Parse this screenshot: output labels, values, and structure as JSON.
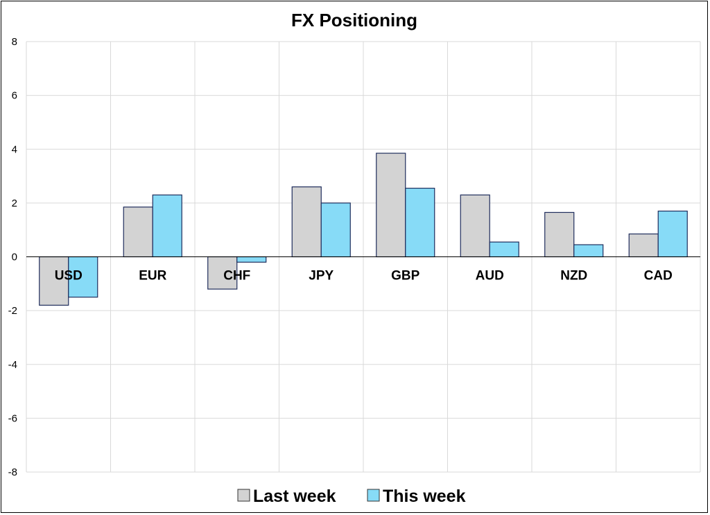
{
  "chart_data": {
    "type": "bar",
    "title": "FX Positioning",
    "xlabel": "",
    "ylabel": "",
    "categories": [
      "USD",
      "EUR",
      "CHF",
      "JPY",
      "GBP",
      "AUD",
      "NZD",
      "CAD"
    ],
    "series": [
      {
        "name": "Last week",
        "values": [
          -1.8,
          1.85,
          -1.2,
          2.6,
          3.85,
          2.3,
          1.65,
          0.85
        ],
        "color": "#d3d3d3"
      },
      {
        "name": "This week",
        "values": [
          -1.5,
          2.3,
          -0.2,
          2.0,
          2.55,
          0.55,
          0.45,
          1.7
        ],
        "color": "#87dbf7"
      }
    ],
    "ylim": [
      -8,
      8
    ],
    "yticks": [
      "8",
      "6",
      "4",
      "2",
      "0",
      "-2",
      "-4",
      "-6",
      "-8"
    ],
    "grid": true,
    "legend_position": "bottom",
    "bar_border_color": "#1f2d5c",
    "grid_color": "#d9d9d9"
  }
}
